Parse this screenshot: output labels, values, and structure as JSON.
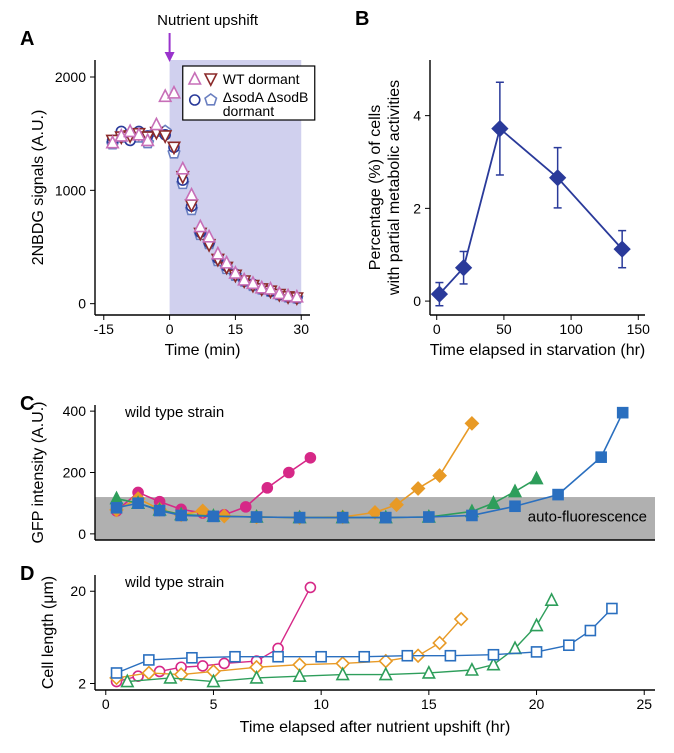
{
  "panelA": {
    "label": "A",
    "upshift_label": "Nutrient upshift",
    "upshift_color": "#9933cc",
    "legend1": "WT dormant",
    "legend2": "ΔsodA ΔsodB dormant",
    "ylabel": "2NBDG signals (A.U.)",
    "xlabel": "Time (min)",
    "xlim": [
      -17,
      32
    ],
    "ylim": [
      -100,
      2150
    ],
    "xticks": [
      -15,
      0,
      15,
      30
    ],
    "yticks": [
      0,
      1000,
      2000
    ],
    "shaded_color": "#d0d0ee",
    "shaded_x": [
      0,
      30
    ],
    "wt_tri_up_color": "#c76fb8",
    "wt_tri_down_color": "#8b2a2a",
    "sod_circle_color": "#2a3a9a",
    "sod_pent_color": "#6a7fc0",
    "wt_up": [
      [
        -13,
        1420
      ],
      [
        -11,
        1480
      ],
      [
        -9,
        1520
      ],
      [
        -7,
        1490
      ],
      [
        -5,
        1440
      ],
      [
        -3,
        1580
      ],
      [
        -1,
        1830
      ],
      [
        1,
        1860
      ],
      [
        3,
        1190
      ],
      [
        5,
        960
      ],
      [
        7,
        680
      ],
      [
        9,
        590
      ],
      [
        11,
        440
      ],
      [
        13,
        360
      ],
      [
        15,
        270
      ],
      [
        17,
        210
      ],
      [
        19,
        180
      ],
      [
        21,
        140
      ],
      [
        23,
        130
      ],
      [
        25,
        90
      ],
      [
        27,
        70
      ],
      [
        29,
        60
      ]
    ],
    "wt_dn": [
      [
        -13,
        1440
      ],
      [
        -11,
        1470
      ],
      [
        -9,
        1480
      ],
      [
        -7,
        1500
      ],
      [
        -5,
        1470
      ],
      [
        -3,
        1510
      ],
      [
        -1,
        1480
      ],
      [
        1,
        1380
      ],
      [
        3,
        1120
      ],
      [
        5,
        870
      ],
      [
        7,
        620
      ],
      [
        9,
        520
      ],
      [
        11,
        390
      ],
      [
        13,
        320
      ],
      [
        15,
        250
      ],
      [
        17,
        200
      ],
      [
        19,
        160
      ],
      [
        21,
        130
      ],
      [
        23,
        110
      ],
      [
        25,
        80
      ],
      [
        27,
        60
      ],
      [
        29,
        50
      ]
    ],
    "sod_c": [
      [
        -13,
        1440
      ],
      [
        -11,
        1520
      ],
      [
        -9,
        1440
      ],
      [
        -7,
        1520
      ],
      [
        -5,
        1480
      ],
      [
        -3,
        1530
      ],
      [
        -1,
        1490
      ],
      [
        1,
        1380
      ],
      [
        3,
        1090
      ],
      [
        5,
        860
      ],
      [
        7,
        630
      ],
      [
        9,
        540
      ],
      [
        11,
        400
      ],
      [
        13,
        330
      ],
      [
        15,
        260
      ],
      [
        17,
        200
      ],
      [
        19,
        170
      ],
      [
        21,
        130
      ],
      [
        23,
        110
      ],
      [
        25,
        80
      ],
      [
        27,
        60
      ],
      [
        29,
        50
      ]
    ],
    "sod_p": [
      [
        -13,
        1410
      ],
      [
        -11,
        1470
      ],
      [
        -9,
        1470
      ],
      [
        -7,
        1470
      ],
      [
        -5,
        1420
      ],
      [
        -3,
        1520
      ],
      [
        -1,
        1520
      ],
      [
        1,
        1330
      ],
      [
        3,
        1060
      ],
      [
        5,
        830
      ],
      [
        7,
        610
      ],
      [
        9,
        530
      ],
      [
        11,
        380
      ],
      [
        13,
        310
      ],
      [
        15,
        250
      ],
      [
        17,
        200
      ],
      [
        19,
        160
      ],
      [
        21,
        130
      ],
      [
        23,
        110
      ],
      [
        25,
        80
      ],
      [
        27,
        60
      ],
      [
        29,
        50
      ]
    ]
  },
  "panelB": {
    "label": "B",
    "ylabel1": "Percentage (%) of cells",
    "ylabel2": "with partial metabolic activities",
    "xlabel": "Time elapsed in starvation (hr)",
    "xlim": [
      -5,
      155
    ],
    "ylim": [
      -0.3,
      5.2
    ],
    "xticks": [
      0,
      50,
      100,
      150
    ],
    "yticks": [
      0,
      2,
      4
    ],
    "color": "#2a3a9a",
    "data": [
      [
        2,
        0.15,
        0.25
      ],
      [
        20,
        0.72,
        0.35
      ],
      [
        47,
        3.72,
        1.0
      ],
      [
        90,
        2.66,
        0.65
      ],
      [
        138,
        1.12,
        0.4
      ]
    ]
  },
  "panelC": {
    "label": "C",
    "strain_label": "wild type strain",
    "auto_label": "auto-fluorescence",
    "ylabel": "GFP intensity (A.U.)",
    "xlim": [
      -0.5,
      25.5
    ],
    "ylim": [
      -20,
      420
    ],
    "xticks": [
      0,
      5,
      10,
      15,
      20,
      25
    ],
    "yticks": [
      0,
      200,
      400
    ],
    "auto_band_color": "#b0b0b0",
    "auto_band_ymax": 120,
    "series": [
      {
        "color": "#d62887",
        "marker": "circle",
        "pts": [
          [
            0.5,
            75
          ],
          [
            1.5,
            135
          ],
          [
            2.5,
            105
          ],
          [
            3.5,
            80
          ],
          [
            4.5,
            68
          ],
          [
            5.5,
            62
          ],
          [
            6.5,
            88
          ],
          [
            7.5,
            150
          ],
          [
            8.5,
            200
          ],
          [
            9.5,
            248
          ]
        ]
      },
      {
        "color": "#e89a26",
        "marker": "diamond",
        "pts": [
          [
            0.5,
            78
          ],
          [
            1.5,
            115
          ],
          [
            2.5,
            80
          ],
          [
            3.5,
            62
          ],
          [
            4.5,
            75
          ],
          [
            5.5,
            58
          ],
          [
            7,
            55
          ],
          [
            9,
            53
          ],
          [
            11,
            55
          ],
          [
            12.5,
            70
          ],
          [
            13.5,
            95
          ],
          [
            14.5,
            148
          ],
          [
            15.5,
            190
          ],
          [
            17,
            360
          ]
        ]
      },
      {
        "color": "#2e9e5b",
        "marker": "triangle",
        "pts": [
          [
            0.5,
            115
          ],
          [
            1.5,
            100
          ],
          [
            2.5,
            78
          ],
          [
            3.5,
            63
          ],
          [
            5,
            58
          ],
          [
            7,
            55
          ],
          [
            9,
            53
          ],
          [
            11,
            53
          ],
          [
            13,
            53
          ],
          [
            15,
            55
          ],
          [
            17,
            73
          ],
          [
            18,
            100
          ],
          [
            19,
            138
          ],
          [
            20,
            180
          ]
        ]
      },
      {
        "color": "#2a6fbf",
        "marker": "square",
        "pts": [
          [
            0.5,
            85
          ],
          [
            1.5,
            100
          ],
          [
            2.5,
            76
          ],
          [
            3.5,
            60
          ],
          [
            5,
            57
          ],
          [
            7,
            55
          ],
          [
            9,
            53
          ],
          [
            11,
            53
          ],
          [
            13,
            53
          ],
          [
            15,
            55
          ],
          [
            17,
            60
          ],
          [
            19,
            90
          ],
          [
            21,
            128
          ],
          [
            23,
            250
          ],
          [
            24,
            395
          ]
        ]
      }
    ]
  },
  "panelD": {
    "label": "D",
    "strain_label": "wild type strain",
    "ylabel": "Cell length (μm)",
    "xlabel": "Time elapsed after nutrient upshift (hr)",
    "xlim": [
      -0.5,
      25.5
    ],
    "ylim_log": [
      1.7,
      30
    ],
    "yticks": [
      2,
      20
    ],
    "series": [
      {
        "color": "#d62887",
        "marker": "circle",
        "pts": [
          [
            0.5,
            2.1
          ],
          [
            1.5,
            2.4
          ],
          [
            2.5,
            2.7
          ],
          [
            3.5,
            3.0
          ],
          [
            4.5,
            3.1
          ],
          [
            5.5,
            3.3
          ],
          [
            7,
            3.5
          ],
          [
            8,
            4.8
          ],
          [
            9.5,
            22
          ]
        ]
      },
      {
        "color": "#e89a26",
        "marker": "diamond",
        "pts": [
          [
            0.5,
            2.3
          ],
          [
            2,
            2.6
          ],
          [
            3.5,
            2.5
          ],
          [
            5,
            2.7
          ],
          [
            7,
            3.0
          ],
          [
            9,
            3.2
          ],
          [
            11,
            3.3
          ],
          [
            13,
            3.5
          ],
          [
            14.5,
            4.0
          ],
          [
            15.5,
            5.5
          ],
          [
            16.5,
            10
          ]
        ]
      },
      {
        "color": "#2e9e5b",
        "marker": "triangle",
        "pts": [
          [
            1,
            2.1
          ],
          [
            3,
            2.3
          ],
          [
            5,
            2.1
          ],
          [
            7,
            2.3
          ],
          [
            9,
            2.4
          ],
          [
            11,
            2.5
          ],
          [
            13,
            2.5
          ],
          [
            15,
            2.6
          ],
          [
            17,
            2.8
          ],
          [
            18,
            3.2
          ],
          [
            19,
            4.8
          ],
          [
            20,
            8.5
          ],
          [
            20.7,
            16
          ]
        ]
      },
      {
        "color": "#2a6fbf",
        "marker": "square",
        "pts": [
          [
            0.5,
            2.6
          ],
          [
            2,
            3.6
          ],
          [
            4,
            3.8
          ],
          [
            6,
            3.9
          ],
          [
            8,
            3.9
          ],
          [
            10,
            3.9
          ],
          [
            12,
            3.9
          ],
          [
            14,
            4.0
          ],
          [
            16,
            4.0
          ],
          [
            18,
            4.1
          ],
          [
            20,
            4.4
          ],
          [
            21.5,
            5.2
          ],
          [
            22.5,
            7.5
          ],
          [
            23.5,
            13
          ]
        ]
      }
    ]
  }
}
